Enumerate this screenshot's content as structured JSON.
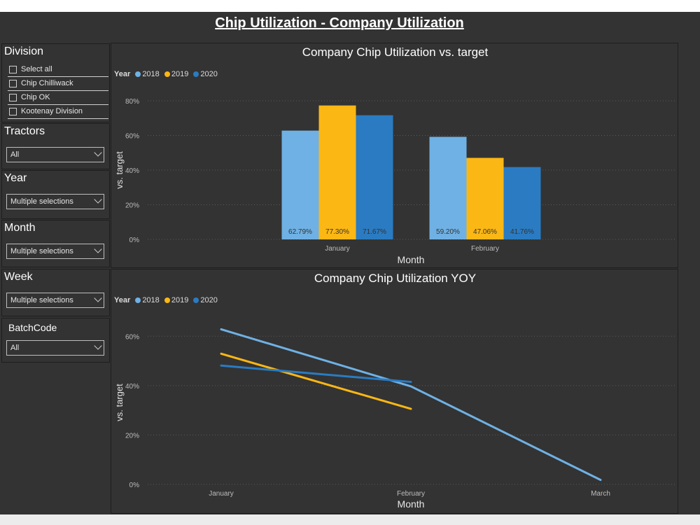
{
  "page_title": "Chip Utilization - Company Utilization",
  "colors": {
    "y2018": "#6fb1e4",
    "y2019": "#fbb714",
    "y2020": "#2a7bc2",
    "background": "#333333"
  },
  "filters": {
    "division": {
      "title": "Division",
      "items": [
        "Select all",
        "Chip Chilliwack",
        "Chip OK",
        "Kootenay Division"
      ]
    },
    "tractors": {
      "title": "Tractors",
      "value": "All"
    },
    "year": {
      "title": "Year",
      "value": "Multiple selections"
    },
    "month": {
      "title": "Month",
      "value": "Multiple selections"
    },
    "week": {
      "title": "Week",
      "value": "Multiple selections"
    },
    "batchcode": {
      "title": "BatchCode",
      "value": "All"
    }
  },
  "legend": {
    "title": "Year",
    "items": [
      "2018",
      "2019",
      "2020"
    ]
  },
  "chart_data": [
    {
      "type": "bar",
      "title": "Company Chip Utilization vs. target",
      "xlabel": "Month",
      "ylabel": "vs. target",
      "categories": [
        "January",
        "February"
      ],
      "series": [
        {
          "name": "2018",
          "values": [
            62.79,
            59.2
          ],
          "labels": [
            "62.79%",
            "59.20%"
          ]
        },
        {
          "name": "2019",
          "values": [
            77.3,
            47.06
          ],
          "labels": [
            "77.30%",
            "47.06%"
          ]
        },
        {
          "name": "2020",
          "values": [
            71.67,
            41.76
          ],
          "labels": [
            "71.67%",
            "41.76%"
          ]
        }
      ],
      "yticks": [
        "0%",
        "20%",
        "40%",
        "60%",
        "80%"
      ],
      "ylim": [
        0,
        80
      ],
      "legend_placement": "top-left",
      "grid": true
    },
    {
      "type": "line",
      "title": "Company Chip Utilization YOY",
      "xlabel": "Month",
      "ylabel": "vs. target",
      "categories": [
        "January",
        "February",
        "March"
      ],
      "series": [
        {
          "name": "2018",
          "values": [
            62.8,
            39.7,
            1.8
          ]
        },
        {
          "name": "2019",
          "values": [
            52.9,
            30.6,
            null
          ]
        },
        {
          "name": "2020",
          "values": [
            48.1,
            41.5,
            null
          ]
        }
      ],
      "yticks": [
        "0%",
        "20%",
        "40%",
        "60%"
      ],
      "ylim": [
        0,
        70
      ],
      "legend_placement": "top-left",
      "grid": true
    }
  ]
}
